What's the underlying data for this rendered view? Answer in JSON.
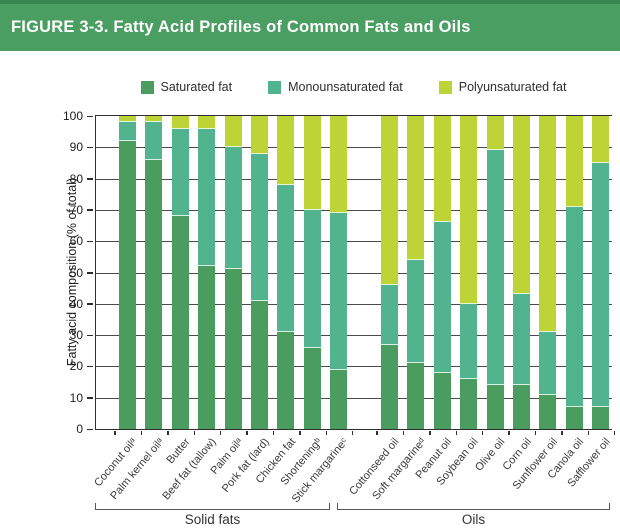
{
  "figure": {
    "title": "FIGURE 3-3. Fatty Acid Profiles of Common Fats and Oils"
  },
  "colors": {
    "header_bg": "#4b9e62",
    "header_top_edge": "#398551",
    "saturated": "#4b9d5f",
    "monounsaturated": "#52b48f",
    "polyunsaturated": "#bcd435",
    "axis": "#2f2f2f",
    "grid": "#4a4a4a"
  },
  "chart_data": {
    "type": "bar",
    "stacked": true,
    "orientation": "vertical",
    "title": "FIGURE 3-3. Fatty Acid Profiles of Common Fats and Oils",
    "ylabel": "Fatty acid composition (% of total)",
    "ylim": [
      0,
      100
    ],
    "ytick_step": 10,
    "grid": true,
    "legend_position": "top",
    "series_meta": [
      {
        "key": "saturated",
        "label": "Saturated fat",
        "color": "#4b9d5f"
      },
      {
        "key": "monounsaturated",
        "label": "Monounsaturated fat",
        "color": "#52b48f"
      },
      {
        "key": "polyunsaturated",
        "label": "Polyunsaturated fat",
        "color": "#bcd435"
      }
    ],
    "groups": [
      {
        "label": "Solid fats",
        "categories": [
          "Coconut oilᵃ",
          "Palm kernel oilᵃ",
          "Butter",
          "Beef fat (tallow)",
          "Palm oilᵃ",
          "Pork fat (lard)",
          "Chicken fat",
          "Shorteningᵇ",
          "Stick margarineᶜ"
        ],
        "values": {
          "saturated": [
            92,
            86,
            68,
            52,
            51,
            41,
            31,
            26,
            19
          ],
          "monounsaturated": [
            6,
            12,
            28,
            44,
            39,
            47,
            47,
            44,
            50
          ],
          "polyunsaturated": [
            2,
            2,
            4,
            4,
            10,
            12,
            22,
            30,
            31
          ]
        }
      },
      {
        "label": "Oils",
        "categories": [
          "Cottonseed oil",
          "Soft margarineᵈ",
          "Peanut oil",
          "Soybean oil",
          "Olive oil",
          "Corn oil",
          "Sunflower oil",
          "Canola oil",
          "Safflower oil"
        ],
        "values": {
          "saturated": [
            27,
            21,
            18,
            16,
            14,
            14,
            11,
            7,
            7
          ],
          "monounsaturated": [
            19,
            33,
            48,
            24,
            75,
            29,
            20,
            64,
            78
          ],
          "polyunsaturated": [
            54,
            46,
            34,
            60,
            11,
            57,
            69,
            29,
            15
          ]
        }
      }
    ]
  }
}
